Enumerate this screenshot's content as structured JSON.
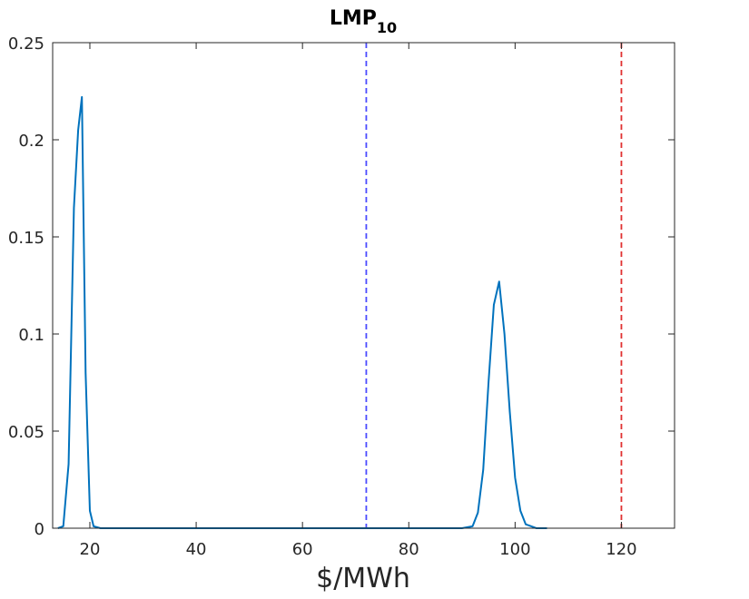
{
  "chart_data": {
    "type": "line",
    "title": "LMP",
    "title_subscript": "10",
    "xlabel": "$/MWh",
    "ylabel": "",
    "xlim": [
      13,
      130
    ],
    "ylim": [
      0,
      0.25
    ],
    "x_ticks": [
      20,
      40,
      60,
      80,
      100,
      120
    ],
    "y_ticks": [
      0,
      0.05,
      0.1,
      0.15,
      0.2,
      0.25
    ],
    "x_tick_labels": [
      "20",
      "40",
      "60",
      "80",
      "100",
      "120"
    ],
    "y_tick_labels": [
      "0",
      "0.05",
      "0.1",
      "0.15",
      "0.2",
      "0.25"
    ],
    "grid": false,
    "series": [
      {
        "color": "#0072BD",
        "x": [
          14,
          15,
          16,
          17,
          17.8,
          18.5,
          19.2,
          20,
          20.7,
          22,
          30,
          40,
          50,
          60,
          70,
          80,
          90,
          92,
          93,
          94,
          95,
          96,
          97,
          98,
          99,
          100,
          101,
          102,
          103,
          104,
          106
        ],
        "y": [
          0,
          0.001,
          0.033,
          0.165,
          0.205,
          0.222,
          0.08,
          0.009,
          0.001,
          0,
          0,
          0,
          0,
          0,
          0,
          0,
          0,
          0.001,
          0.008,
          0.03,
          0.075,
          0.115,
          0.127,
          0.1,
          0.06,
          0.026,
          0.009,
          0.002,
          0.001,
          0,
          0
        ]
      }
    ],
    "reference_lines": [
      {
        "x": 72,
        "color": "#4a4aff",
        "style": "dashed"
      },
      {
        "x": 120,
        "color": "#e03030",
        "style": "dashed"
      }
    ]
  }
}
